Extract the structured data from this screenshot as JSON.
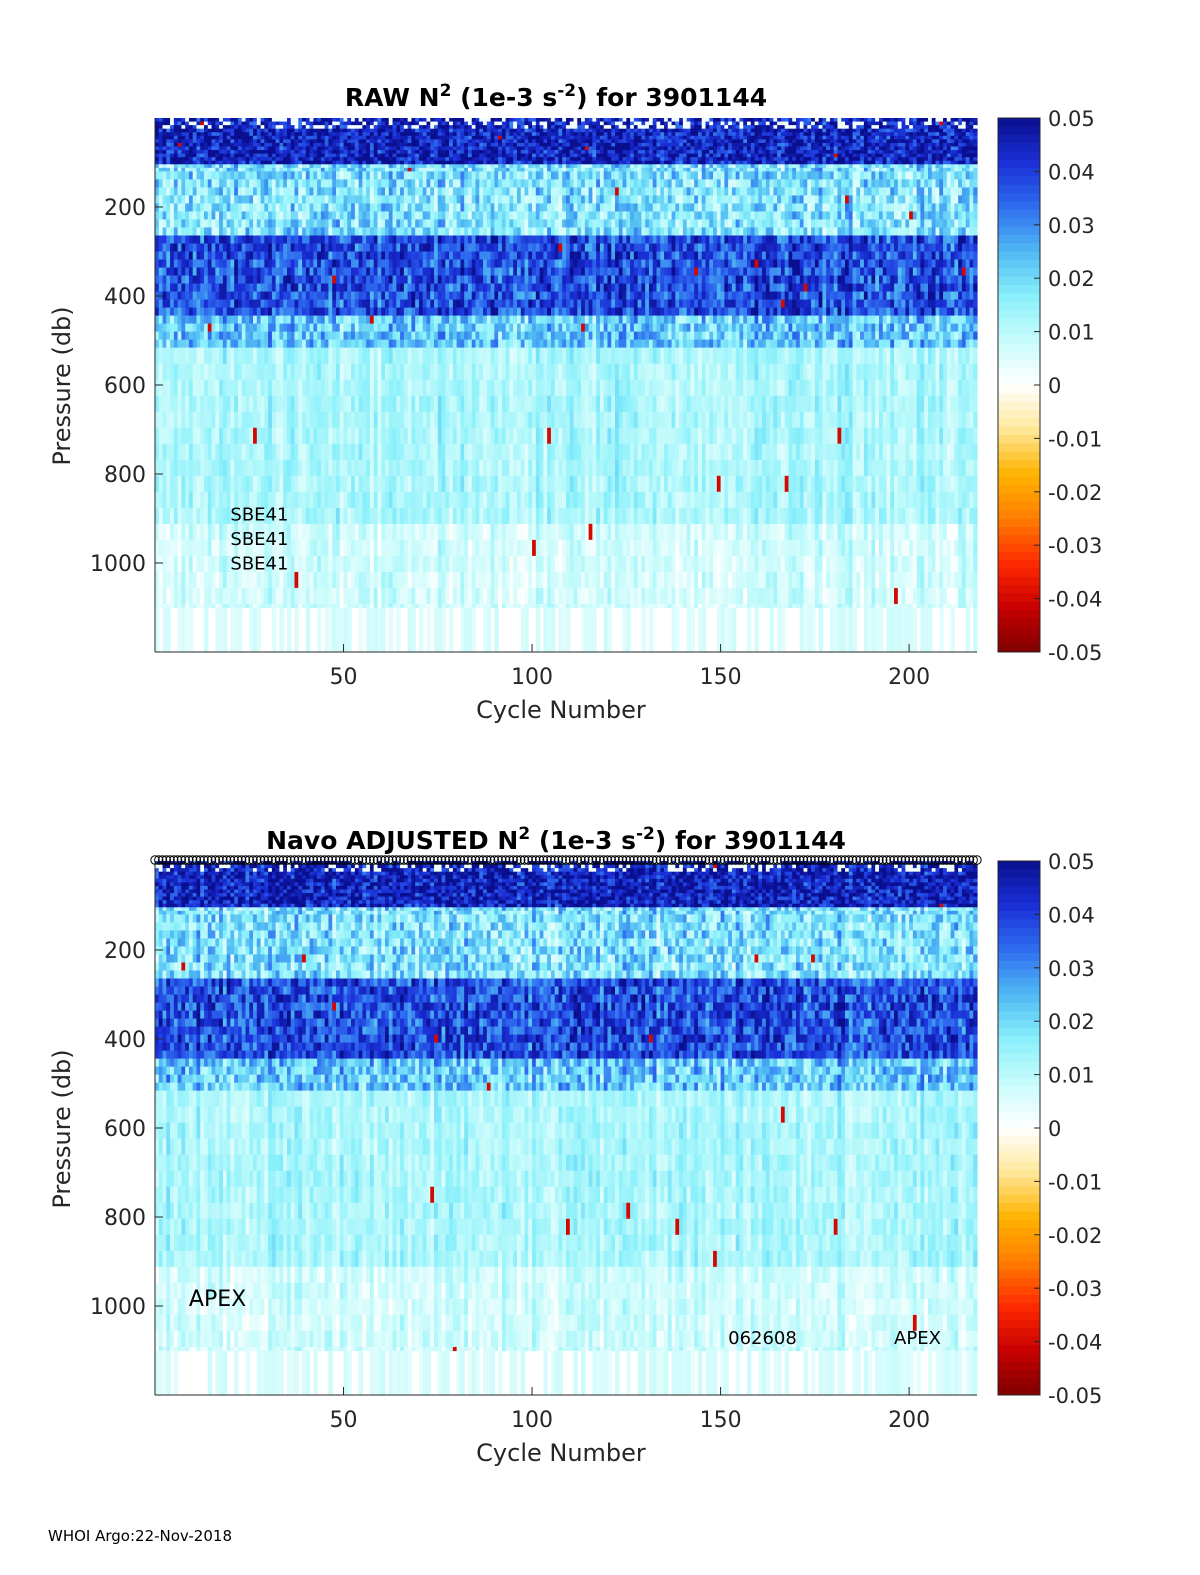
{
  "footer": "WHOI Argo:22-Nov-2018",
  "colors": {
    "colormap": [
      "#7f0000",
      "#c80000",
      "#ff2a00",
      "#ff7e00",
      "#ffb300",
      "#ffe89a",
      "#ffffff",
      "#c8fbfb",
      "#89f0fb",
      "#4fb9f3",
      "#2f6df0",
      "#1a2fd6",
      "#0a0f8f"
    ]
  },
  "chart_data": [
    {
      "type": "heatmap",
      "title_parts": [
        "RAW N",
        "2",
        " (1e-3 s",
        "-2",
        ") for 3901144"
      ],
      "xlabel": "Cycle Number",
      "ylabel": "Pressure (db)",
      "xlim": [
        0,
        218
      ],
      "ylim": [
        1200,
        0
      ],
      "x_ticks": [
        50,
        100,
        150,
        200
      ],
      "x_tick_labels": [
        "50",
        "100",
        "150",
        "200"
      ],
      "y_ticks": [
        200,
        400,
        600,
        800,
        1000
      ],
      "y_tick_labels": [
        "200",
        "400",
        "600",
        "800",
        "1000"
      ],
      "colorbar": {
        "range": [
          -0.05,
          0.05
        ],
        "ticks": [
          0.05,
          0.04,
          0.03,
          0.02,
          0.01,
          0,
          -0.01,
          -0.02,
          -0.03,
          -0.04,
          -0.05
        ],
        "tick_labels": [
          "0.05",
          "0.04",
          "0.03",
          "0.02",
          "0.01",
          "0",
          "-0.01",
          "-0.02",
          "-0.03",
          "-0.04",
          "-0.05"
        ]
      },
      "annotations": [
        {
          "text": "SBE41",
          "x": 20,
          "y": 905
        },
        {
          "text": "SBE41",
          "x": 20,
          "y": 960
        },
        {
          "text": "SBE41",
          "x": 20,
          "y": 1015
        }
      ],
      "profile_typical_values": [
        {
          "p_from": 0,
          "p_to": 100,
          "value": 0.045
        },
        {
          "p_from": 100,
          "p_to": 260,
          "value": 0.018
        },
        {
          "p_from": 260,
          "p_to": 440,
          "value": 0.038
        },
        {
          "p_from": 440,
          "p_to": 500,
          "value": 0.022
        },
        {
          "p_from": 500,
          "p_to": 900,
          "value": 0.012
        },
        {
          "p_from": 900,
          "p_to": 1100,
          "value": 0.007
        }
      ]
    },
    {
      "type": "heatmap",
      "title_parts": [
        "Navo  ADJUSTED N",
        "2",
        " (1e-3 s",
        "-2",
        ") for 3901144"
      ],
      "xlabel": "Cycle Number",
      "ylabel": "Pressure (db)",
      "xlim": [
        0,
        218
      ],
      "ylim": [
        1200,
        0
      ],
      "x_ticks": [
        50,
        100,
        150,
        200
      ],
      "x_tick_labels": [
        "50",
        "100",
        "150",
        "200"
      ],
      "y_ticks": [
        200,
        400,
        600,
        800,
        1000
      ],
      "y_tick_labels": [
        "200",
        "400",
        "600",
        "800",
        "1000"
      ],
      "colorbar": {
        "range": [
          -0.05,
          0.05
        ],
        "ticks": [
          0.05,
          0.04,
          0.03,
          0.02,
          0.01,
          0,
          -0.01,
          -0.02,
          -0.03,
          -0.04,
          -0.05
        ],
        "tick_labels": [
          "0.05",
          "0.04",
          "0.03",
          "0.02",
          "0.01",
          "0",
          "-0.01",
          "-0.02",
          "-0.03",
          "-0.04",
          "-0.05"
        ]
      },
      "annotations": [
        {
          "text": "APEX",
          "x": 9,
          "y": 1000,
          "size": "large"
        },
        {
          "text": "062608",
          "x": 152,
          "y": 1085
        },
        {
          "text": "APEX",
          "x": 196,
          "y": 1085
        }
      ],
      "profile_typical_values": [
        {
          "p_from": 0,
          "p_to": 100,
          "value": 0.045
        },
        {
          "p_from": 100,
          "p_to": 260,
          "value": 0.018
        },
        {
          "p_from": 260,
          "p_to": 440,
          "value": 0.038
        },
        {
          "p_from": 440,
          "p_to": 500,
          "value": 0.022
        },
        {
          "p_from": 500,
          "p_to": 900,
          "value": 0.012
        },
        {
          "p_from": 900,
          "p_to": 1100,
          "value": 0.007
        }
      ]
    }
  ]
}
